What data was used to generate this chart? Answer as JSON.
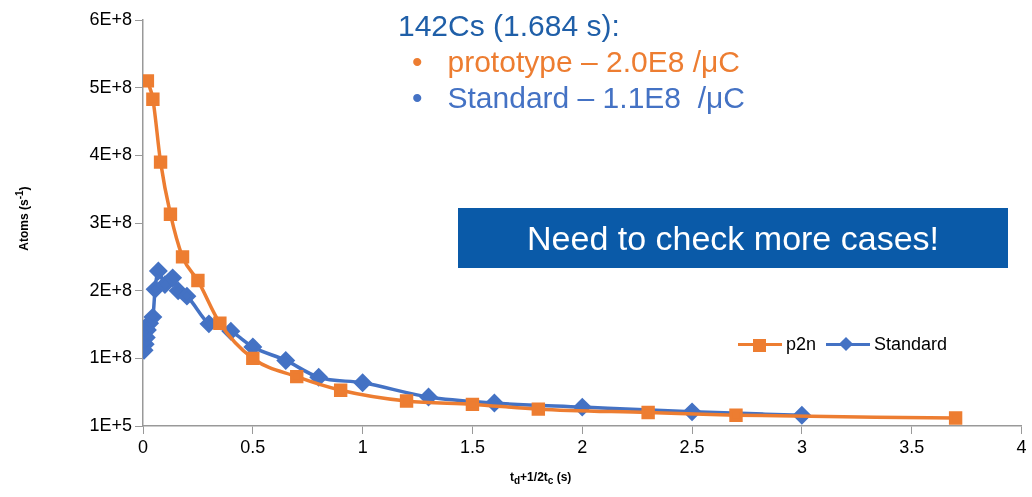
{
  "chart_data": {
    "type": "line",
    "xlabel": "t$_{d}$+1/2t$_{c}$ (s)",
    "ylabel": "Atoms (s$^{-1}$)",
    "xlim": [
      0,
      4
    ],
    "xticks": [
      0,
      0.5,
      1,
      1.5,
      2,
      2.5,
      3,
      3.5,
      4
    ],
    "ylim": [
      100000,
      600000000
    ],
    "yticks": [
      {
        "value": 100000,
        "label": "1E+5"
      },
      {
        "value": 100000000,
        "label": "1E+8"
      },
      {
        "value": 200000000,
        "label": "2E+8"
      },
      {
        "value": 300000000,
        "label": "3E+8"
      },
      {
        "value": 400000000,
        "label": "4E+8"
      },
      {
        "value": 500000000,
        "label": "5E+8"
      },
      {
        "value": 600000000,
        "label": "6E+8"
      }
    ],
    "grid": false,
    "legend": "right",
    "annotations": [
      "142Cs (1.684 s):",
      "•   prototype – 2.0E8 /μC",
      "•   Standard – 1.1E8  /μC",
      "Need to check more cases!"
    ],
    "series": [
      {
        "name": "p2n",
        "color": "#ed7d31",
        "marker": "square",
        "x": [
          0.02,
          0.045,
          0.08,
          0.125,
          0.18,
          0.25,
          0.35,
          0.5,
          0.7,
          0.9,
          1.2,
          1.5,
          1.8,
          2.3,
          2.7,
          3.7
        ],
        "values": [
          510000000,
          483000000,
          390000000,
          313000000,
          250000000,
          215000000,
          152000000,
          100000000,
          73000000,
          53000000,
          37000000,
          32000000,
          25000000,
          20000000,
          16000000,
          12000000
        ]
      },
      {
        "name": "Standard",
        "color": "#4472c4",
        "marker": "diamond",
        "x": [
          0.005,
          0.01,
          0.015,
          0.02,
          0.03,
          0.045,
          0.055,
          0.07,
          0.1,
          0.135,
          0.16,
          0.2,
          0.3,
          0.4,
          0.5,
          0.65,
          0.8,
          1.0,
          1.3,
          1.6,
          2.0,
          2.5,
          3.0
        ],
        "values": [
          112000000,
          121000000,
          131000000,
          142000000,
          152000000,
          161000000,
          202000000,
          229000000,
          209000000,
          219000000,
          200000000,
          192000000,
          151000000,
          140000000,
          117000000,
          97000000,
          72000000,
          64000000,
          43000000,
          34000000,
          28000000,
          21000000,
          16000000
        ]
      }
    ]
  }
}
